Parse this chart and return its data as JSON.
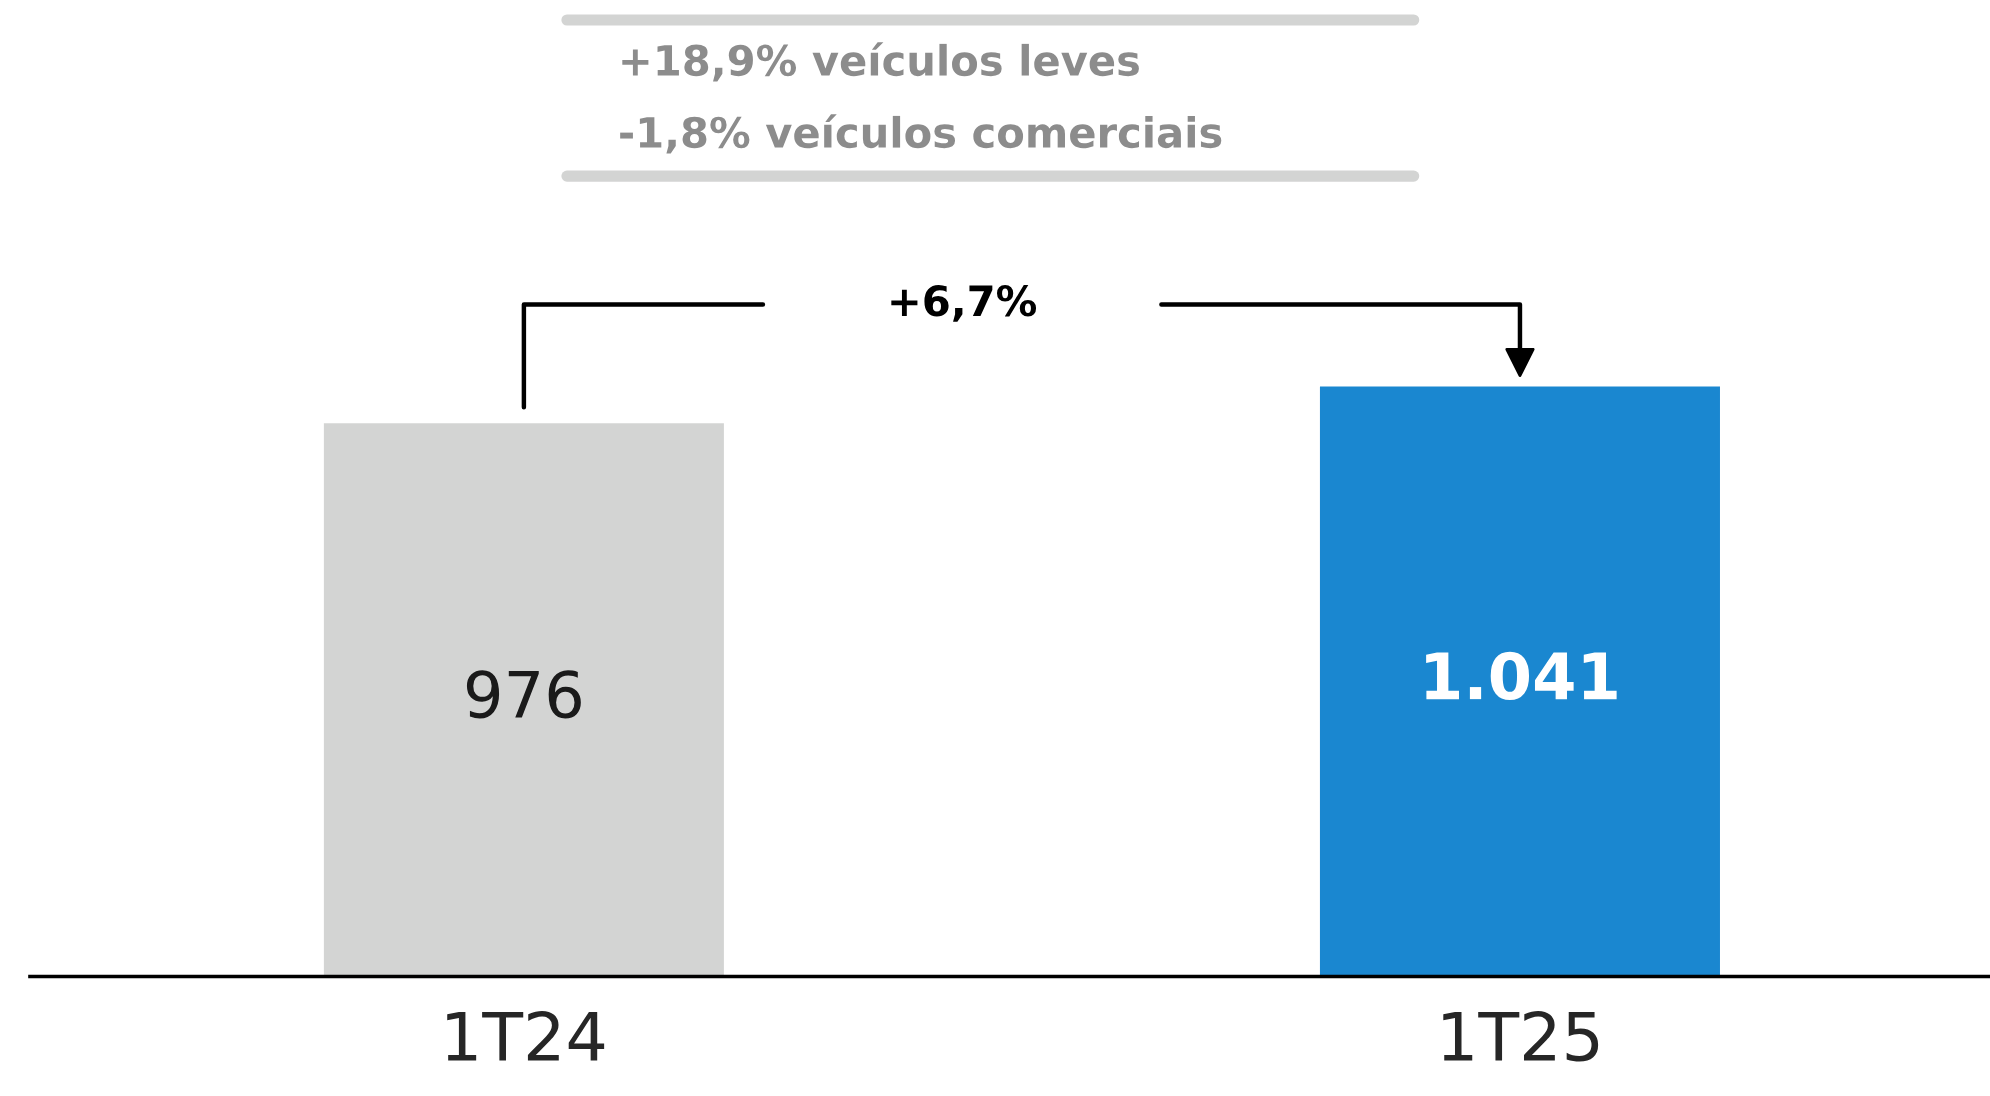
{
  "chart_data": {
    "type": "bar",
    "categories": [
      "1T24",
      "1T25"
    ],
    "values": [
      976,
      1041
    ],
    "colors": [
      "#d3d4d3",
      "#1a87d0"
    ],
    "value_labels": [
      "976",
      "1.041"
    ],
    "annotations": [
      "+18,9% veículos leves",
      "-1,8% veículos comerciais",
      "+6,7%"
    ],
    "grid": false,
    "legend": false
  }
}
